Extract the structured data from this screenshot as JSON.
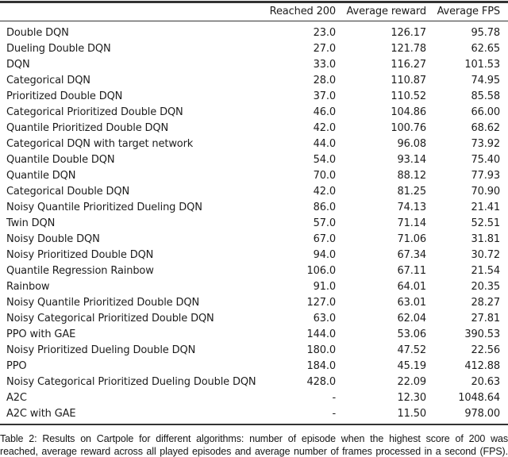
{
  "table": {
    "columns": [
      "",
      "Reached 200",
      "Average reward",
      "Average FPS"
    ],
    "rows": [
      [
        "Double DQN",
        "23.0",
        "126.17",
        "95.78"
      ],
      [
        "Dueling Double DQN",
        "27.0",
        "121.78",
        "62.65"
      ],
      [
        "DQN",
        "33.0",
        "116.27",
        "101.53"
      ],
      [
        "Categorical DQN",
        "28.0",
        "110.87",
        "74.95"
      ],
      [
        "Prioritized Double DQN",
        "37.0",
        "110.52",
        "85.58"
      ],
      [
        "Categorical Prioritized Double DQN",
        "46.0",
        "104.86",
        "66.00"
      ],
      [
        "Quantile Prioritized Double DQN",
        "42.0",
        "100.76",
        "68.62"
      ],
      [
        "Categorical DQN with target network",
        "44.0",
        "96.08",
        "73.92"
      ],
      [
        "Quantile Double DQN",
        "54.0",
        "93.14",
        "75.40"
      ],
      [
        "Quantile DQN",
        "70.0",
        "88.12",
        "77.93"
      ],
      [
        "Categorical Double DQN",
        "42.0",
        "81.25",
        "70.90"
      ],
      [
        "Noisy Quantile Prioritized Dueling DQN",
        "86.0",
        "74.13",
        "21.41"
      ],
      [
        "Twin DQN",
        "57.0",
        "71.14",
        "52.51"
      ],
      [
        "Noisy Double DQN",
        "67.0",
        "71.06",
        "31.81"
      ],
      [
        "Noisy Prioritized Double DQN",
        "94.0",
        "67.34",
        "30.72"
      ],
      [
        "Quantile Regression Rainbow",
        "106.0",
        "67.11",
        "21.54"
      ],
      [
        "Rainbow",
        "91.0",
        "64.01",
        "20.35"
      ],
      [
        "Noisy Quantile Prioritized Double DQN",
        "127.0",
        "63.01",
        "28.27"
      ],
      [
        "Noisy Categorical Prioritized Double DQN",
        "63.0",
        "62.04",
        "27.81"
      ],
      [
        "PPO with GAE",
        "144.0",
        "53.06",
        "390.53"
      ],
      [
        "Noisy Prioritized Dueling Double DQN",
        "180.0",
        "47.52",
        "22.56"
      ],
      [
        "PPO",
        "184.0",
        "45.19",
        "412.88"
      ],
      [
        "Noisy Categorical Prioritized Dueling Double DQN",
        "428.0",
        "22.09",
        "20.63"
      ],
      [
        "A2C",
        "-",
        "12.30",
        "1048.64"
      ],
      [
        "A2C with GAE",
        "-",
        "11.50",
        "978.00"
      ]
    ]
  },
  "caption": {
    "lines": [
      "Table 2:  Results on Cartpole for different algorithms:  number of episode when the highest score of 200 was",
      "reached, average reward across all played episodes and average number of frames processed in a second (FPS)."
    ]
  },
  "colors": {
    "text": "#1d1d1d",
    "rule": "#333333",
    "background": "#ffffff"
  }
}
